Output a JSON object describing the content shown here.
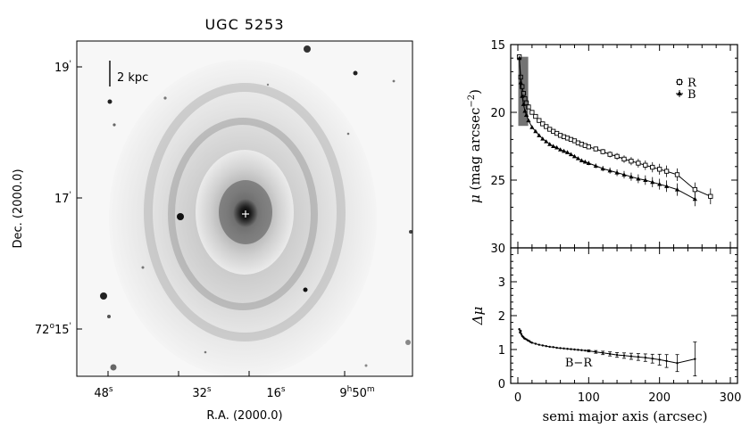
{
  "image_panel": {
    "title": "UGC 5253",
    "scale_bar_label": "2 kpc",
    "xlabel": "R.A. (2000.0)",
    "ylabel": "Dec. (2000.0)",
    "ra_ticks": [
      {
        "value": "48",
        "sup": "s"
      },
      {
        "value": "32",
        "sup": "s"
      },
      {
        "value": "16",
        "sup": "s"
      },
      {
        "value": "9",
        "sup": "h",
        "value2": "50",
        "sup2": "m"
      }
    ],
    "dec_ticks": [
      {
        "value": "19",
        "sup": "'"
      },
      {
        "value": "17",
        "sup": "'"
      },
      {
        "value": "72",
        "sup": "o",
        "value2": "15",
        "sup2": "'"
      }
    ]
  },
  "chart_data": [
    {
      "type": "line",
      "panel": "surface-brightness",
      "ylabel_symbol": "μ",
      "ylabel_unit": "(mag arcsec",
      "ylabel_exp": "−2",
      "ylabel_close": ")",
      "xlim": [
        0,
        300
      ],
      "ylim": [
        30,
        15
      ],
      "yticks": [
        "15",
        "20",
        "25",
        "30"
      ],
      "legend": [
        "R",
        "B"
      ],
      "legend_position": "top-right",
      "series": [
        {
          "name": "R",
          "marker": "square",
          "x": [
            2,
            4,
            6,
            8,
            10,
            12,
            15,
            20,
            25,
            30,
            35,
            40,
            45,
            50,
            55,
            60,
            65,
            70,
            75,
            80,
            85,
            90,
            95,
            100,
            110,
            120,
            130,
            140,
            150,
            160,
            170,
            180,
            190,
            200,
            210,
            225,
            250,
            272
          ],
          "y": [
            15.9,
            17.4,
            18.1,
            18.6,
            19.0,
            19.3,
            19.6,
            20.0,
            20.3,
            20.6,
            20.85,
            21.05,
            21.25,
            21.4,
            21.55,
            21.7,
            21.8,
            21.9,
            22.0,
            22.1,
            22.25,
            22.35,
            22.45,
            22.55,
            22.7,
            22.9,
            23.1,
            23.25,
            23.45,
            23.6,
            23.75,
            23.9,
            24.05,
            24.2,
            24.35,
            24.6,
            25.7,
            26.2
          ]
        },
        {
          "name": "B",
          "marker": "triangle",
          "x": [
            2,
            4,
            6,
            8,
            10,
            12,
            15,
            20,
            25,
            30,
            35,
            40,
            45,
            50,
            55,
            60,
            65,
            70,
            75,
            80,
            85,
            90,
            95,
            100,
            110,
            120,
            130,
            140,
            150,
            160,
            170,
            180,
            190,
            200,
            210,
            225,
            250
          ],
          "y": [
            16.0,
            17.8,
            18.8,
            19.4,
            19.9,
            20.2,
            20.6,
            21.1,
            21.4,
            21.7,
            21.95,
            22.15,
            22.35,
            22.5,
            22.6,
            22.75,
            22.85,
            22.95,
            23.1,
            23.25,
            23.4,
            23.55,
            23.65,
            23.75,
            23.95,
            24.15,
            24.3,
            24.45,
            24.6,
            24.75,
            24.9,
            25.0,
            25.15,
            25.3,
            25.45,
            25.7,
            26.4
          ]
        }
      ]
    },
    {
      "type": "line",
      "panel": "color-profile",
      "ylabel": "Δμ",
      "xlabel": "semi major axis (arcsec)",
      "xlim": [
        0,
        300
      ],
      "ylim": [
        0,
        4
      ],
      "xticks": [
        "0",
        "100",
        "200",
        "300"
      ],
      "yticks": [
        "0",
        "1",
        "2",
        "3"
      ],
      "annotation": "B−R",
      "series": [
        {
          "name": "B−R",
          "x": [
            2,
            3,
            4,
            5,
            6,
            7,
            8,
            9,
            10,
            12,
            14,
            16,
            18,
            20,
            25,
            30,
            35,
            40,
            45,
            50,
            55,
            60,
            65,
            70,
            75,
            80,
            85,
            90,
            95,
            100,
            110,
            120,
            130,
            140,
            150,
            160,
            170,
            180,
            190,
            200,
            210,
            225,
            250
          ],
          "y": [
            1.6,
            1.5,
            1.55,
            1.45,
            1.4,
            1.38,
            1.36,
            1.33,
            1.32,
            1.3,
            1.27,
            1.25,
            1.22,
            1.2,
            1.17,
            1.14,
            1.12,
            1.1,
            1.08,
            1.07,
            1.05,
            1.04,
            1.03,
            1.02,
            1.01,
            1.0,
            0.99,
            0.98,
            0.97,
            0.96,
            0.93,
            0.9,
            0.87,
            0.84,
            0.82,
            0.8,
            0.78,
            0.76,
            0.73,
            0.7,
            0.66,
            0.6,
            0.72
          ],
          "errors": [
            0,
            0,
            0,
            0,
            0,
            0,
            0,
            0,
            0,
            0,
            0,
            0,
            0,
            0,
            0,
            0,
            0,
            0,
            0,
            0,
            0,
            0,
            0,
            0,
            0,
            0,
            0,
            0,
            0,
            0.03,
            0.04,
            0.05,
            0.06,
            0.07,
            0.08,
            0.09,
            0.1,
            0.11,
            0.13,
            0.16,
            0.19,
            0.25,
            0.5
          ]
        }
      ]
    }
  ]
}
